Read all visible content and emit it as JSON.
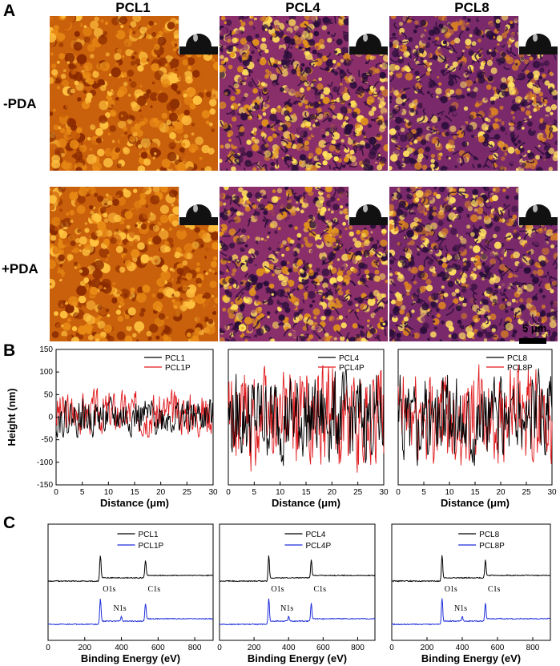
{
  "panel_labels": {
    "a": "A",
    "b": "B",
    "c": "C"
  },
  "column_headers": [
    "PCL1",
    "PCL4",
    "PCL8"
  ],
  "row_headers": [
    "-PDA",
    "+PDA"
  ],
  "scale_bar": "5 μm",
  "colors": {
    "black_series": "#000000",
    "red_series": "#e0191d",
    "blue_series": "#1f2fd8",
    "afm_dark": "#2a0e3a",
    "afm_mid": "#c9600b",
    "afm_light": "#ffe05a"
  },
  "afm_images": [
    {
      "sample": "PCL1",
      "treatment": "-PDA",
      "icon": "contact-angle-droplet-icon"
    },
    {
      "sample": "PCL4",
      "treatment": "-PDA",
      "icon": "contact-angle-droplet-icon"
    },
    {
      "sample": "PCL8",
      "treatment": "-PDA",
      "icon": "contact-angle-droplet-icon"
    },
    {
      "sample": "PCL1",
      "treatment": "+PDA",
      "icon": "contact-angle-droplet-icon"
    },
    {
      "sample": "PCL4",
      "treatment": "+PDA",
      "icon": "contact-angle-droplet-icon"
    },
    {
      "sample": "PCL8",
      "treatment": "+PDA",
      "icon": "contact-angle-droplet-icon"
    }
  ],
  "chart_data": [
    {
      "type": "line",
      "panel": "B",
      "xlabel": "Distance (μm)",
      "ylabel": "Height (nm)",
      "xlim": [
        0,
        30
      ],
      "ylim": [
        -150,
        150
      ],
      "xticks": [
        0,
        5,
        10,
        15,
        20,
        25,
        30
      ],
      "yticks": [
        150,
        100,
        50,
        0,
        -50,
        -100,
        -150
      ],
      "series": [
        {
          "name": "PCL1",
          "color": "black",
          "amplitude": 25
        },
        {
          "name": "PCL1P",
          "color": "red",
          "amplitude": 30
        }
      ]
    },
    {
      "type": "line",
      "panel": "B",
      "xlabel": "Distance (μm)",
      "ylabel": "",
      "xlim": [
        0,
        30
      ],
      "ylim": [
        -150,
        150
      ],
      "xticks": [
        0,
        5,
        10,
        15,
        20,
        25,
        30
      ],
      "series": [
        {
          "name": "PCL4",
          "color": "black",
          "amplitude": 60
        },
        {
          "name": "PCL4P",
          "color": "red",
          "amplitude": 70
        }
      ]
    },
    {
      "type": "line",
      "panel": "B",
      "xlabel": "Distance (μm)",
      "ylabel": "",
      "xlim": [
        0,
        30
      ],
      "ylim": [
        -150,
        150
      ],
      "xticks": [
        0,
        5,
        10,
        15,
        20,
        25,
        30
      ],
      "series": [
        {
          "name": "PCL8",
          "color": "black",
          "amplitude": 60
        },
        {
          "name": "PCL8P",
          "color": "red",
          "amplitude": 65
        }
      ]
    },
    {
      "type": "line",
      "panel": "C",
      "xlabel": "Binding Energy (eV)",
      "xlim": [
        0,
        900
      ],
      "xticks": [
        0,
        200,
        400,
        600,
        800
      ],
      "series": [
        {
          "name": "PCL1",
          "color": "black"
        },
        {
          "name": "PCL1P",
          "color": "blue"
        }
      ],
      "peaks": [
        {
          "label": "O1s",
          "x": 285
        },
        {
          "label": "N1s",
          "x": 400
        },
        {
          "label": "C1s",
          "x": 531
        }
      ]
    },
    {
      "type": "line",
      "panel": "C",
      "xlabel": "Binding Energy (eV)",
      "xlim": [
        0,
        900
      ],
      "xticks": [
        0,
        200,
        400,
        600,
        800
      ],
      "series": [
        {
          "name": "PCL4",
          "color": "black"
        },
        {
          "name": "PCL4P",
          "color": "blue"
        }
      ],
      "peaks": [
        {
          "label": "O1s",
          "x": 285
        },
        {
          "label": "N1s",
          "x": 400
        },
        {
          "label": "C1s",
          "x": 531
        }
      ]
    },
    {
      "type": "line",
      "panel": "C",
      "xlabel": "Binding Energy (eV)",
      "xlim": [
        0,
        900
      ],
      "xticks": [
        0,
        200,
        400,
        600,
        800
      ],
      "series": [
        {
          "name": "PCL8",
          "color": "black"
        },
        {
          "name": "PCL8P",
          "color": "blue"
        }
      ],
      "peaks": [
        {
          "label": "O1s",
          "x": 285
        },
        {
          "label": "N1s",
          "x": 400
        },
        {
          "label": "C1s",
          "x": 531
        }
      ]
    }
  ]
}
